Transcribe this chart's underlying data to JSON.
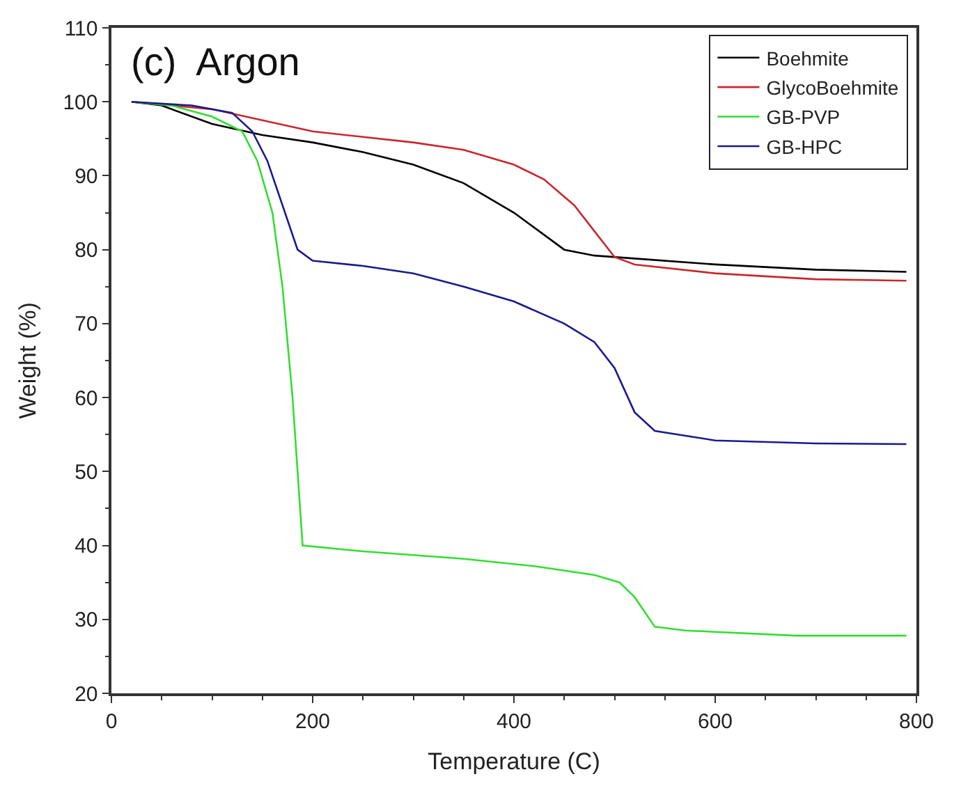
{
  "chart_data": {
    "type": "line",
    "xlabel": "Temperature (C)",
    "ylabel": "Weight (%)",
    "annotations": [
      "(c)  Argon"
    ],
    "xlim": [
      0,
      800
    ],
    "xticks": [
      0,
      200,
      400,
      600,
      800
    ],
    "ylim": [
      20,
      110
    ],
    "yticks": [
      20,
      30,
      40,
      50,
      60,
      70,
      80,
      90,
      100,
      110
    ],
    "legend": "top right",
    "marker": "none",
    "line_style": "solid",
    "series": [
      {
        "name": "Boehmite",
        "color": "#000000",
        "x": [
          20,
          50,
          100,
          150,
          200,
          250,
          300,
          350,
          400,
          430,
          450,
          480,
          520,
          600,
          700,
          790
        ],
        "values": [
          100,
          99.5,
          97,
          95.5,
          94.5,
          93.2,
          91.5,
          89,
          85,
          82,
          80,
          79.2,
          78.8,
          78,
          77.3,
          77
        ]
      },
      {
        "name": "GlycoBoehmite",
        "color": "#c8282d",
        "x": [
          20,
          100,
          150,
          200,
          300,
          350,
          400,
          430,
          460,
          480,
          500,
          520,
          600,
          700,
          790
        ],
        "values": [
          100,
          99,
          97.5,
          96,
          94.5,
          93.5,
          91.5,
          89.5,
          86,
          82.5,
          79,
          78,
          76.8,
          76,
          75.8
        ]
      },
      {
        "name": "GB-PVP",
        "color": "#33dd33",
        "x": [
          20,
          60,
          100,
          130,
          145,
          160,
          170,
          180,
          185,
          190,
          250,
          350,
          420,
          480,
          505,
          520,
          540,
          570,
          680,
          790
        ],
        "values": [
          100,
          99.5,
          98,
          96,
          92,
          85,
          75,
          60,
          50,
          40,
          39.2,
          38.2,
          37.2,
          36,
          35,
          33,
          29,
          28.5,
          27.8,
          27.8
        ]
      },
      {
        "name": "GB-HPC",
        "color": "#1a1a8c",
        "x": [
          20,
          80,
          120,
          140,
          155,
          170,
          185,
          200,
          250,
          300,
          350,
          400,
          450,
          480,
          500,
          520,
          540,
          600,
          700,
          790
        ],
        "values": [
          100,
          99.5,
          98.5,
          96,
          92,
          86,
          80,
          78.5,
          77.8,
          76.8,
          75,
          73,
          70,
          67.5,
          64,
          58,
          55.5,
          54.2,
          53.8,
          53.7
        ]
      }
    ]
  }
}
